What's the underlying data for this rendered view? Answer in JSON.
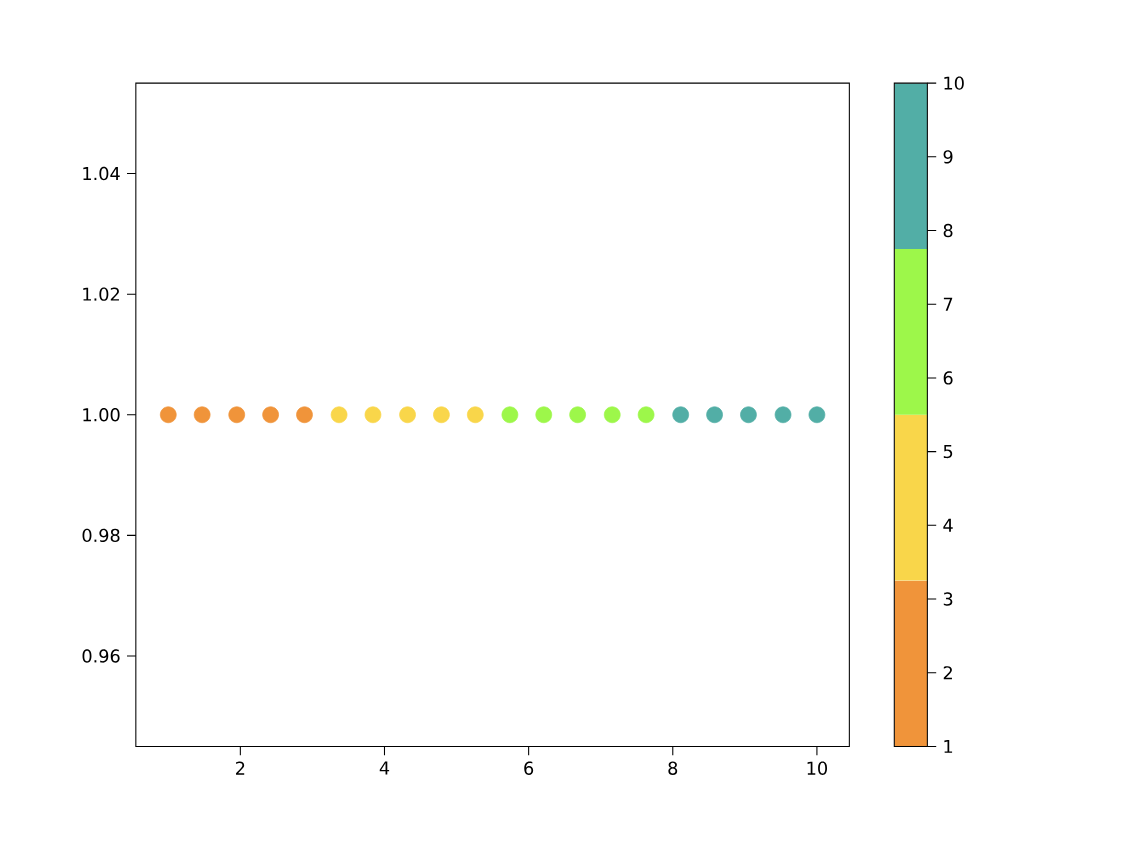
{
  "chart_data": {
    "type": "scatter",
    "x": [
      1,
      1.47,
      1.95,
      2.42,
      2.89,
      3.37,
      3.84,
      4.32,
      4.79,
      5.26,
      5.74,
      6.21,
      6.68,
      7.16,
      7.63,
      8.11,
      8.58,
      9.05,
      9.53,
      10
    ],
    "values": [
      1,
      1,
      1,
      1,
      1,
      1,
      1,
      1,
      1,
      1,
      1,
      1,
      1,
      1,
      1,
      1,
      1,
      1,
      1,
      1
    ],
    "colors": [
      "#f0943a",
      "#f0943a",
      "#f0943a",
      "#f0943a",
      "#f0943a",
      "#f9d64a",
      "#f9d64a",
      "#f9d64a",
      "#f9d64a",
      "#f9d64a",
      "#9df74a",
      "#9df74a",
      "#9df74a",
      "#9df74a",
      "#9df74a",
      "#52aea6",
      "#52aea6",
      "#52aea6",
      "#52aea6",
      "#52aea6"
    ],
    "clim": [
      1,
      10
    ],
    "cticks": [
      1,
      2,
      3,
      4,
      5,
      6,
      7,
      8,
      9,
      10
    ],
    "xlim": [
      0.55,
      10.45
    ],
    "xticks": [
      2,
      4,
      6,
      8,
      10
    ],
    "ylim": [
      0.945,
      1.055
    ],
    "yticks": [
      {
        "value": 0.96,
        "label": "0.96"
      },
      {
        "value": 0.98,
        "label": "0.98"
      },
      {
        "value": 1.0,
        "label": "1.00"
      },
      {
        "value": 1.02,
        "label": "1.02"
      },
      {
        "value": 1.04,
        "label": "1.04"
      }
    ],
    "grid": false
  }
}
